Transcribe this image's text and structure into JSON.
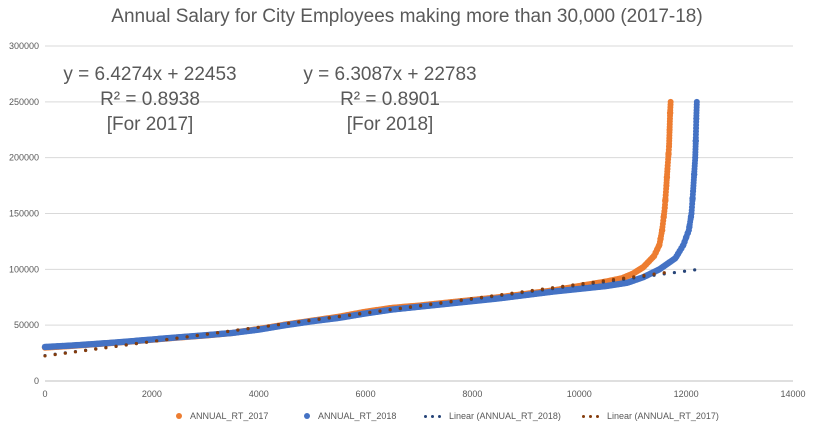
{
  "chart_data": {
    "type": "scatter",
    "title": "Annual Salary for City Employees making more than 30,000 (2017-18)",
    "xlim": [
      0,
      14000
    ],
    "ylim": [
      0,
      300000
    ],
    "x_ticks": [
      "0",
      "2000",
      "4000",
      "6000",
      "8000",
      "10000",
      "12000",
      "14000"
    ],
    "y_ticks": [
      "0",
      "50000",
      "100000",
      "150000",
      "200000",
      "250000",
      "300000"
    ],
    "gridlines": "horizontal",
    "legend_position": "bottom",
    "series": [
      {
        "name": "ANNUAL_RT_2017",
        "color": "#ED7D31",
        "marker": "dot",
        "points": [
          [
            0,
            30000
          ],
          [
            500,
            31500
          ],
          [
            1000,
            33200
          ],
          [
            1500,
            35000
          ],
          [
            2000,
            37000
          ],
          [
            2500,
            39000
          ],
          [
            3000,
            40800
          ],
          [
            3500,
            43000
          ],
          [
            4000,
            46500
          ],
          [
            4500,
            50500
          ],
          [
            5000,
            54000
          ],
          [
            5500,
            57500
          ],
          [
            6000,
            62000
          ],
          [
            6500,
            65500
          ],
          [
            7000,
            67500
          ],
          [
            7500,
            70000
          ],
          [
            8000,
            72500
          ],
          [
            8500,
            75000
          ],
          [
            9000,
            78000
          ],
          [
            9500,
            81000
          ],
          [
            10000,
            85000
          ],
          [
            10500,
            89000
          ],
          [
            10800,
            92000
          ],
          [
            11000,
            96000
          ],
          [
            11200,
            102000
          ],
          [
            11400,
            112000
          ],
          [
            11500,
            122000
          ],
          [
            11550,
            135000
          ],
          [
            11600,
            155000
          ],
          [
            11630,
            175000
          ],
          [
            11650,
            190000
          ],
          [
            11680,
            210000
          ],
          [
            11690,
            225000
          ],
          [
            11700,
            240000
          ],
          [
            11710,
            250000
          ]
        ]
      },
      {
        "name": "ANNUAL_RT_2018",
        "color": "#4472C4",
        "marker": "dot",
        "points": [
          [
            0,
            30500
          ],
          [
            500,
            31800
          ],
          [
            1000,
            33400
          ],
          [
            1500,
            35200
          ],
          [
            2000,
            37200
          ],
          [
            2500,
            39200
          ],
          [
            3000,
            41000
          ],
          [
            3500,
            43000
          ],
          [
            4000,
            46000
          ],
          [
            4500,
            50000
          ],
          [
            5000,
            53500
          ],
          [
            5500,
            56500
          ],
          [
            6000,
            60500
          ],
          [
            6500,
            64000
          ],
          [
            7000,
            66500
          ],
          [
            7500,
            69000
          ],
          [
            8000,
            71500
          ],
          [
            8500,
            74000
          ],
          [
            9000,
            77000
          ],
          [
            9500,
            80000
          ],
          [
            10000,
            82500
          ],
          [
            10500,
            85000
          ],
          [
            10900,
            88000
          ],
          [
            11200,
            93000
          ],
          [
            11500,
            100000
          ],
          [
            11800,
            110000
          ],
          [
            11950,
            122000
          ],
          [
            12050,
            135000
          ],
          [
            12100,
            150000
          ],
          [
            12130,
            170000
          ],
          [
            12150,
            185000
          ],
          [
            12170,
            200000
          ],
          [
            12180,
            215000
          ],
          [
            12190,
            235000
          ],
          [
            12200,
            250000
          ]
        ]
      }
    ],
    "trendlines": [
      {
        "name": "Linear (ANNUAL_RT_2018)",
        "color": "#264478",
        "slope": 6.3087,
        "intercept": 22783,
        "x_range": [
          0,
          12200
        ],
        "style": "dotted"
      },
      {
        "name": "Linear (ANNUAL_RT_2017)",
        "color": "#843C0C",
        "slope": 6.4274,
        "intercept": 22453,
        "x_range": [
          0,
          11710
        ],
        "style": "dotted"
      }
    ],
    "annotations": [
      {
        "lines": [
          "y = 6.4274x + 22453",
          "R² = 0.8938",
          "[For 2017]"
        ]
      },
      {
        "lines": [
          "y = 6.3087x + 22783",
          "R² = 0.8901",
          "[For 2018]"
        ]
      }
    ]
  },
  "legend": [
    {
      "label": "ANNUAL_RT_2017",
      "color": "#ED7D31",
      "kind": "dot"
    },
    {
      "label": "ANNUAL_RT_2018",
      "color": "#4472C4",
      "kind": "dot"
    },
    {
      "label": "Linear (ANNUAL_RT_2018)",
      "color": "#264478",
      "kind": "dotted-line"
    },
    {
      "label": "Linear (ANNUAL_RT_2017)",
      "color": "#843C0C",
      "kind": "dotted-line"
    }
  ]
}
